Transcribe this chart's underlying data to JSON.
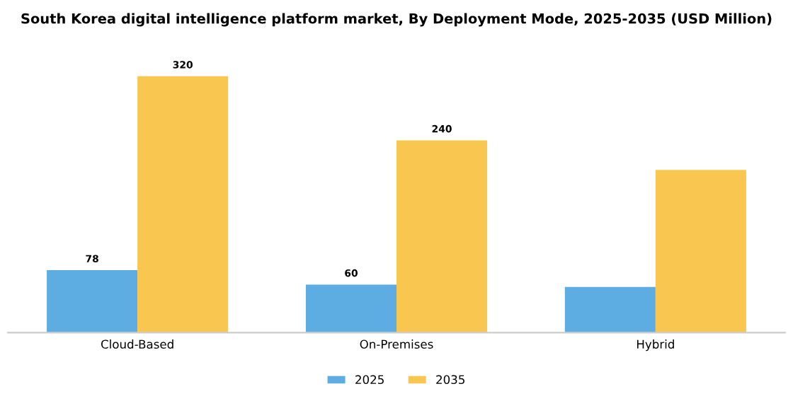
{
  "chart_data": {
    "type": "bar",
    "title": "South Korea digital intelligence platform market, By Deployment Mode, 2025-2035 (USD Million)",
    "categories": [
      "Cloud-Based",
      "On-Premises",
      "Hybrid"
    ],
    "series": [
      {
        "name": "2025",
        "color": "#5dade2",
        "values": [
          78,
          60,
          57
        ],
        "value_labels": [
          "78",
          "60",
          null
        ]
      },
      {
        "name": "2035",
        "color": "#f9c74f",
        "values": [
          320,
          240,
          203
        ],
        "value_labels": [
          "320",
          "240",
          null
        ]
      }
    ],
    "legend": "bottom",
    "grid": false
  }
}
